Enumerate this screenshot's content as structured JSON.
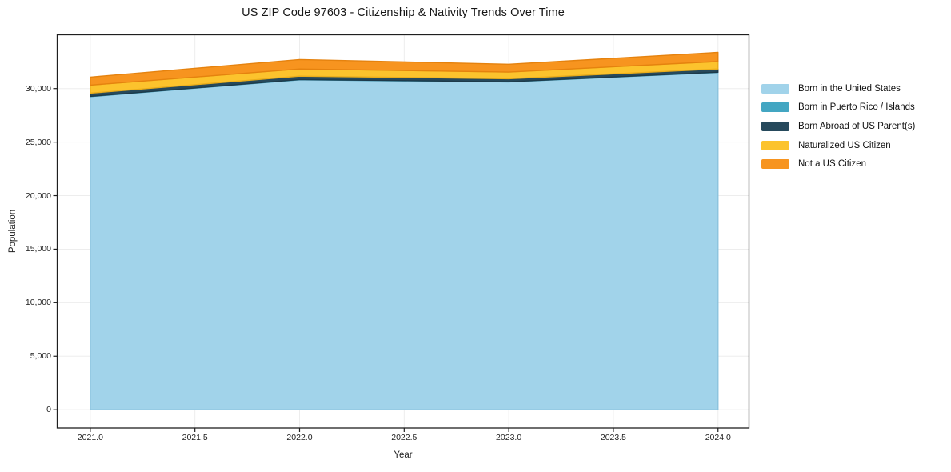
{
  "title": "US ZIP Code 97603 - Citizenship & Nativity Trends Over Time",
  "axes": {
    "x_label": "Year",
    "y_label": "Population",
    "x_ticks": [
      "2021.0",
      "2021.5",
      "2022.0",
      "2022.5",
      "2023.0",
      "2023.5",
      "2024.0"
    ],
    "y_ticks": [
      "0",
      "5,000",
      "10,000",
      "15,000",
      "20,000",
      "25,000",
      "30,000"
    ]
  },
  "legend": {
    "position": "right-outside"
  },
  "chart_data": {
    "type": "area",
    "stacked": true,
    "title": "US ZIP Code 97603 - Citizenship & Nativity Trends Over Time",
    "xlabel": "Year",
    "ylabel": "Population",
    "x": [
      2021,
      2022,
      2023,
      2024
    ],
    "series": [
      {
        "name": "Born in the United States",
        "color": "#a1d3ea",
        "edge": "#8cc3de",
        "values": [
          29250,
          30820,
          30620,
          31510
        ]
      },
      {
        "name": "Born in Puerto Rico / Islands",
        "color": "#43a6c2",
        "edge": "#3795b1",
        "values": [
          20,
          20,
          20,
          20
        ]
      },
      {
        "name": "Born Abroad of US Parent(s)",
        "color": "#26495c",
        "edge": "#1d3a4a",
        "values": [
          300,
          320,
          280,
          300
        ]
      },
      {
        "name": "Naturalized US Citizen",
        "color": "#fcc32d",
        "edge": "#eaad1a",
        "values": [
          750,
          670,
          620,
          700
        ]
      },
      {
        "name": "Not a US Citizen",
        "color": "#f7941f",
        "edge": "#e5820e",
        "values": [
          750,
          880,
          730,
          850
        ]
      }
    ],
    "totals": [
      31070,
      32710,
      32270,
      33380
    ],
    "xlim": [
      2020.84,
      2024.15
    ],
    "ylim": [
      -1743,
      35060
    ],
    "grid": true,
    "grid_color": "#ededed",
    "spine_color": "#1f1f1f",
    "legend_position": "right-outside"
  }
}
